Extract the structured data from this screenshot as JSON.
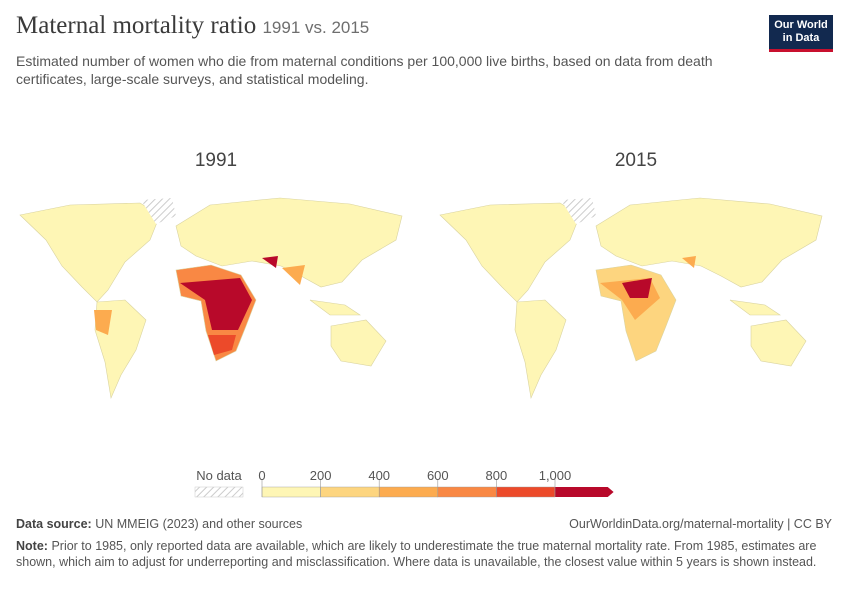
{
  "header": {
    "title": "Maternal mortality ratio",
    "title_suffix": "1991 vs. 2015",
    "subtitle": "Estimated number of women who die from maternal conditions per 100,000 live births, based on data from death certificates, large-scale surveys, and statistical modeling.",
    "logo_lines": [
      "Our World",
      "in Data"
    ]
  },
  "maps": [
    {
      "label": "1991"
    },
    {
      "label": "2015"
    }
  ],
  "legend": {
    "no_data_label": "No data",
    "ticks": [
      0,
      200,
      400,
      600,
      800,
      {
        "value": 1000,
        "label": "1,000"
      }
    ],
    "colors": [
      "#fef6b5",
      "#fdd57f",
      "#fcab4f",
      "#f98844",
      "#ec4a2a",
      "#b8092a"
    ]
  },
  "footer": {
    "source_label": "Data source:",
    "source": "UN MMEIG (2023) and other sources",
    "url": "OurWorldinData.org/maternal-mortality | CC BY",
    "note_label": "Note:",
    "note": "Prior to 1985, only reported data are available, which are likely to underestimate the true maternal mortality rate. From 1985, estimates are shown, which aim to adjust for underreporting and misclassification. Where data is unavailable, the closest value within 5 years is shown instead."
  }
}
